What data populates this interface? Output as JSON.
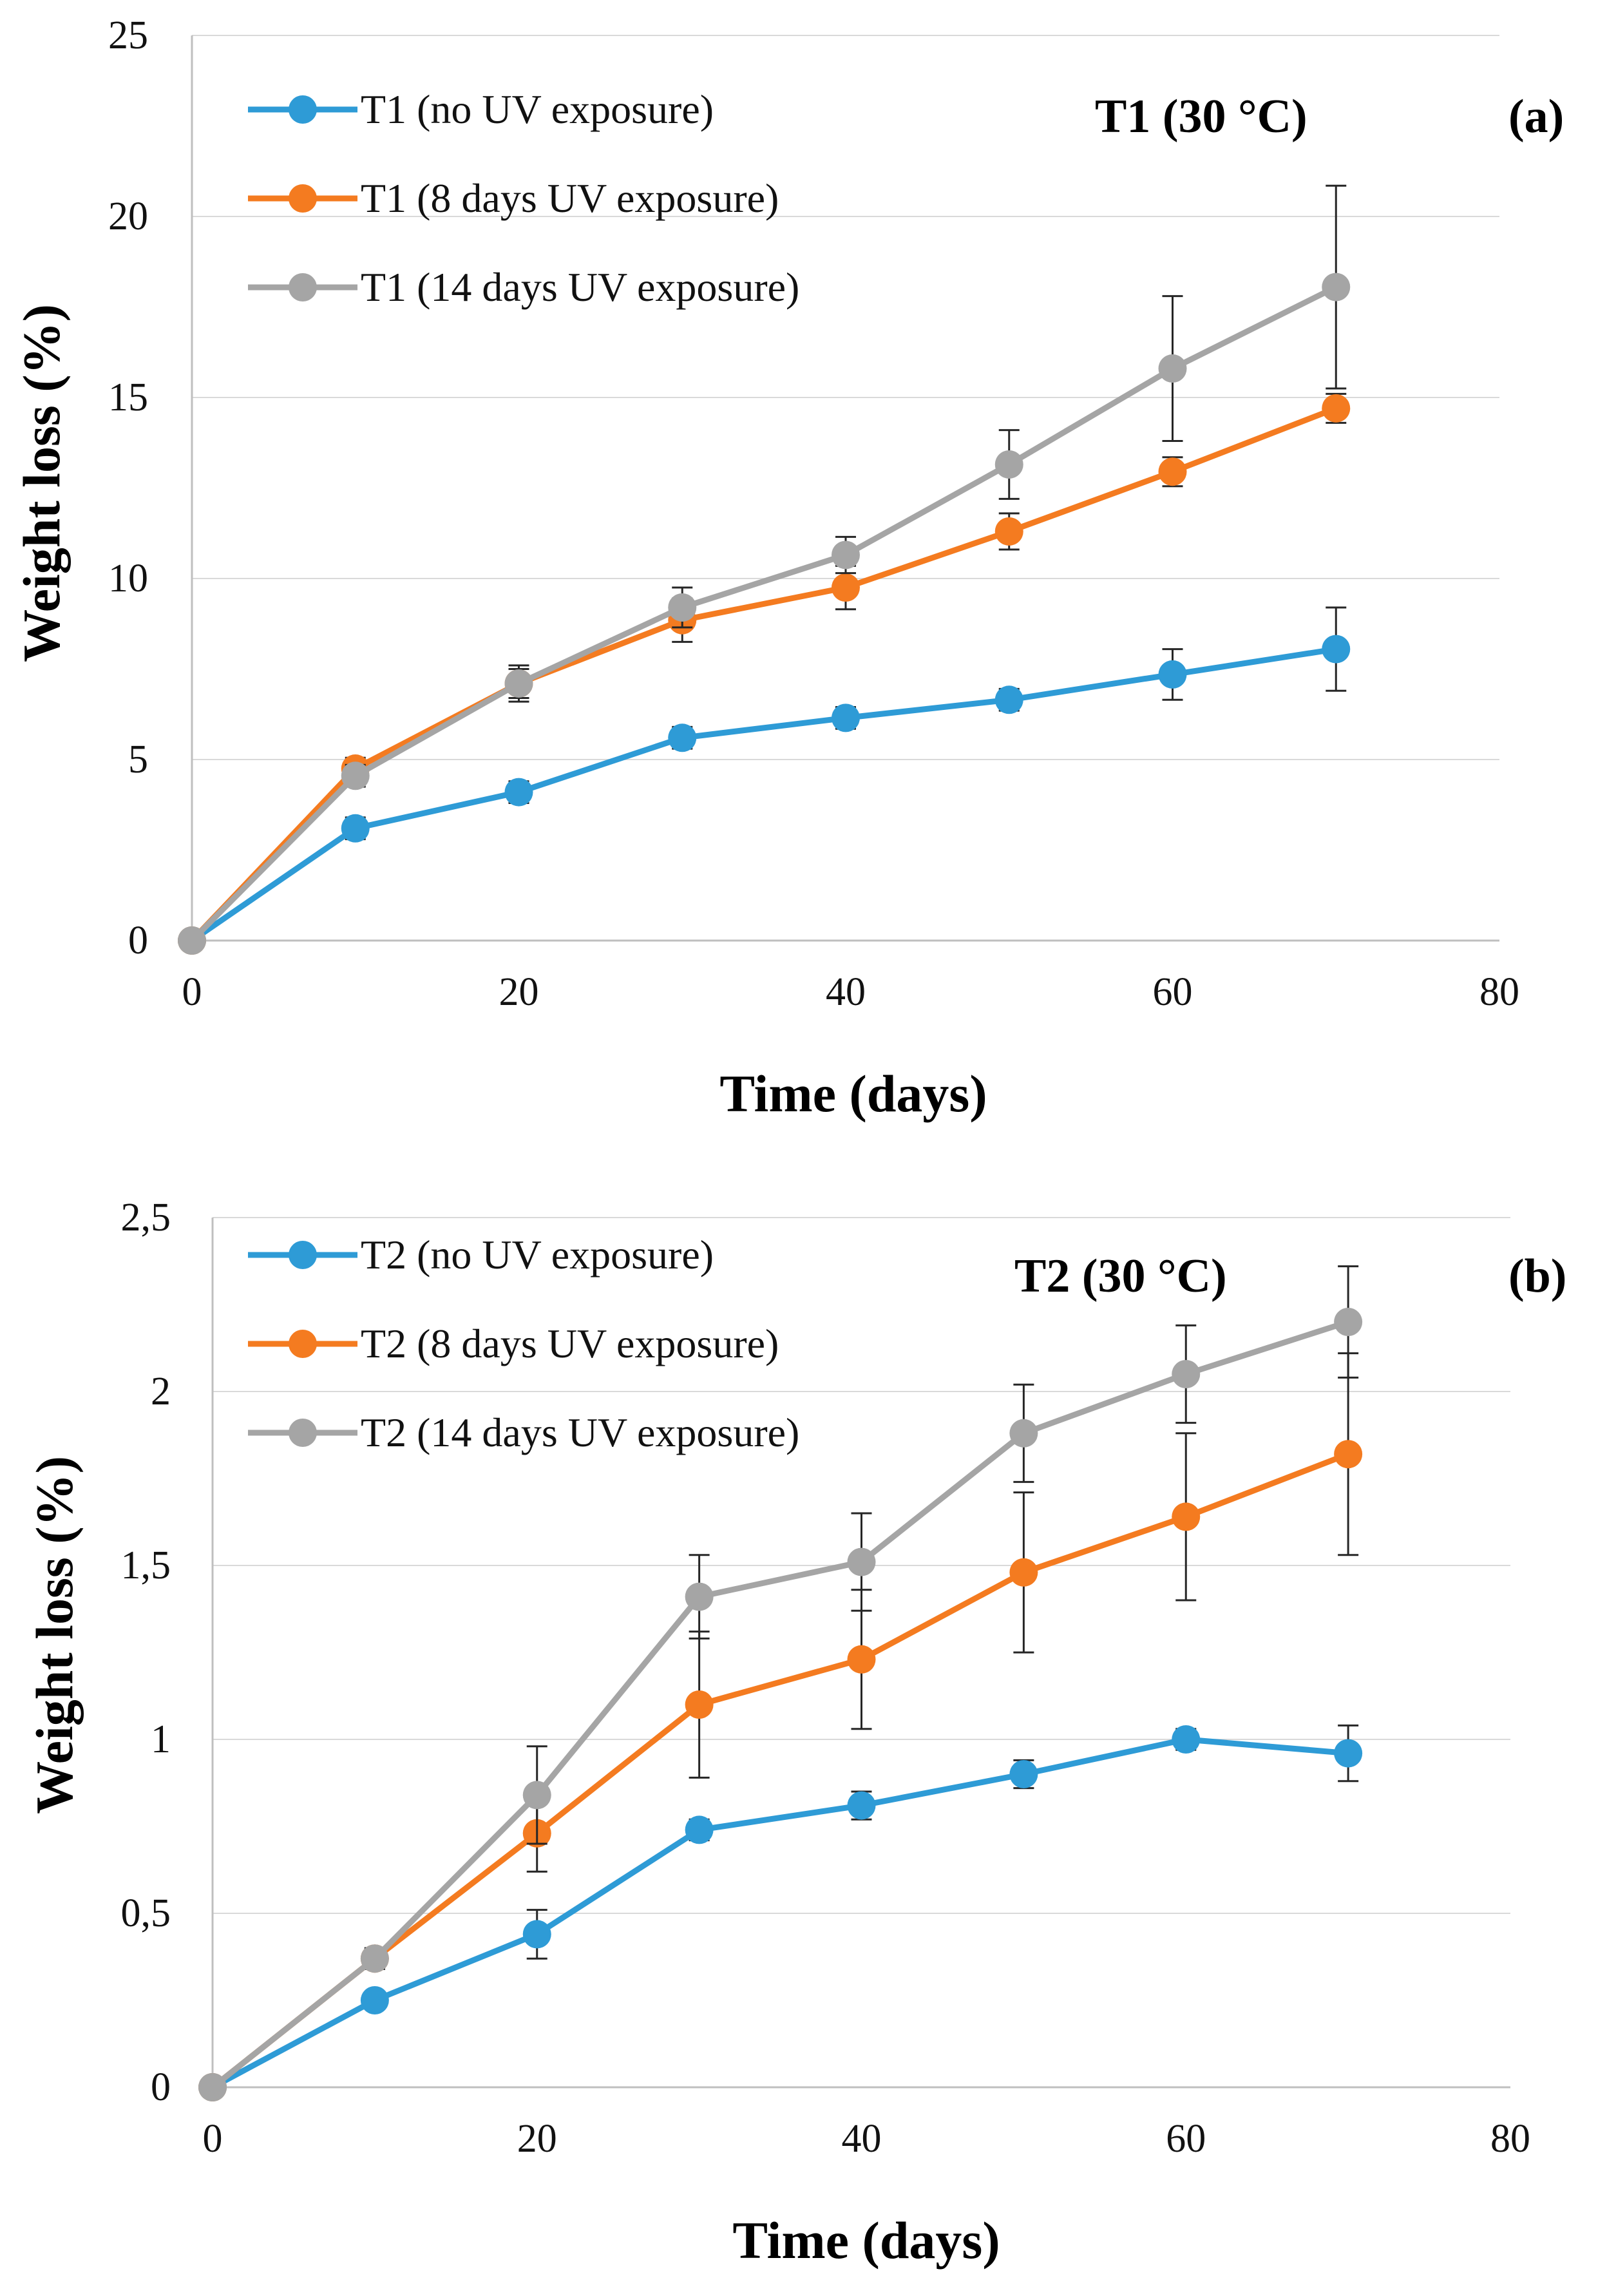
{
  "chart_data": [
    {
      "type": "line",
      "panel_label": "(a)",
      "annotation": "T1 (30 °C)",
      "xlabel": "Time (days)",
      "ylabel": "Weight loss (%)",
      "xlim": [
        0,
        80
      ],
      "ylim": [
        0,
        25
      ],
      "x_ticks": [
        "0",
        "20",
        "40",
        "60",
        "80"
      ],
      "y_ticks": [
        "0",
        "5",
        "10",
        "15",
        "20",
        "25"
      ],
      "x": [
        0,
        10,
        20,
        30,
        40,
        50,
        60,
        70
      ],
      "series": [
        {
          "name": "T1 (no UV exposure)",
          "color": "#2e9bd6",
          "values": [
            0,
            3.1,
            4.1,
            5.6,
            6.15,
            6.65,
            7.35,
            8.05
          ],
          "errors": [
            0.1,
            0.3,
            0.3,
            0.3,
            0.3,
            0.3,
            0.7,
            1.15
          ]
        },
        {
          "name": "T1 (8 days UV exposure)",
          "color": "#f47b20",
          "values": [
            0,
            4.75,
            7.1,
            8.85,
            9.75,
            11.3,
            12.95,
            14.7
          ],
          "errors": [
            0.1,
            0.3,
            0.5,
            0.6,
            0.6,
            0.5,
            0.4,
            0.4
          ]
        },
        {
          "name": "T1 (14 days UV exposure)",
          "color": "#a5a5a5",
          "values": [
            0,
            4.55,
            7.1,
            9.2,
            10.65,
            13.15,
            15.8,
            18.05
          ],
          "errors": [
            0.1,
            0.3,
            0.4,
            0.55,
            0.5,
            0.95,
            2.0,
            2.8
          ]
        }
      ]
    },
    {
      "type": "line",
      "panel_label": "(b)",
      "annotation": "T2 (30 °C)",
      "xlabel": "Time (days)",
      "ylabel": "Weight loss (%)",
      "xlim": [
        0,
        80
      ],
      "ylim": [
        0,
        2.5
      ],
      "x_ticks": [
        "0",
        "20",
        "40",
        "60",
        "80"
      ],
      "y_ticks": [
        "0",
        "0,5",
        "1",
        "1,5",
        "2",
        "2,5"
      ],
      "x": [
        0,
        10,
        20,
        30,
        40,
        50,
        60,
        70
      ],
      "series": [
        {
          "name": "T2 (no UV exposure)",
          "color": "#2e9bd6",
          "values": [
            0,
            0.25,
            0.44,
            0.74,
            0.81,
            0.9,
            1.0,
            0.96
          ],
          "errors": [
            0.01,
            0.02,
            0.07,
            0.03,
            0.04,
            0.04,
            0.03,
            0.08
          ]
        },
        {
          "name": "T2 (8 days UV exposure)",
          "color": "#f47b20",
          "values": [
            0,
            0.37,
            0.73,
            1.1,
            1.23,
            1.48,
            1.64,
            1.82
          ],
          "errors": [
            0.01,
            0.03,
            0.11,
            0.21,
            0.2,
            0.23,
            0.24,
            0.29
          ]
        },
        {
          "name": "T2 (14 days UV exposure)",
          "color": "#a5a5a5",
          "values": [
            0,
            0.37,
            0.84,
            1.41,
            1.51,
            1.88,
            2.05,
            2.2
          ],
          "errors": [
            0.01,
            0.03,
            0.14,
            0.12,
            0.14,
            0.14,
            0.14,
            0.16
          ]
        }
      ]
    }
  ]
}
